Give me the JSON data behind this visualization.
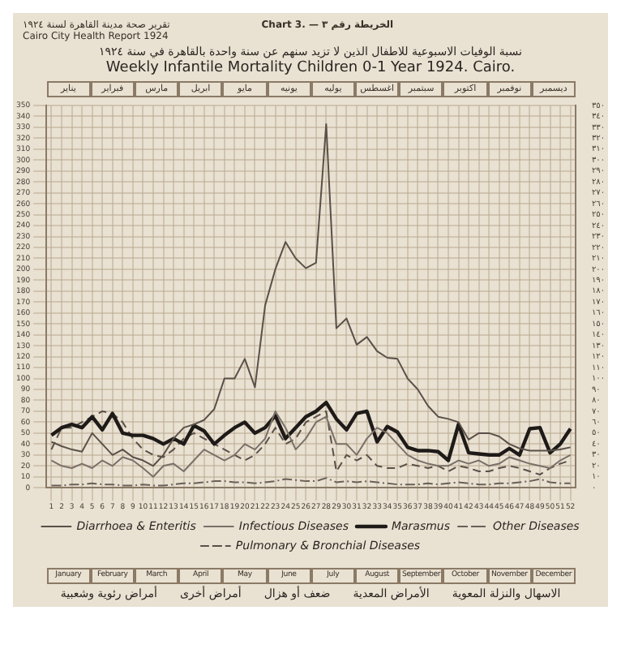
{
  "chart_data": {
    "type": "line",
    "title": "Weekly Infantile Mortality Children 0-1 Year 1924. Cairo.",
    "subtitle": "نسبة الوفيات الاسبوعية للاطفال الذين لا تزيد سنهم عن سنة واحدة بالقاهرة في سنة ١٩٢٤",
    "annotations": [
      "تقرير صحة مدينة القاهرة لسنة ١٩٢٤",
      "Cairo City Health Report 1924",
      "Chart 3. — الخريطة رقم ٣",
      "الاسهال والنزلة المعوية",
      "الأمراض المعدية",
      "ضعف أو هزال",
      "أمراض أخرى",
      "أمراض رئوية وشعبية",
      "January",
      "February",
      "March",
      "April",
      "May",
      "June",
      "July",
      "August",
      "September",
      "October",
      "November",
      "December",
      "يناير",
      "فبراير",
      "مارس",
      "ابريل",
      "مايو",
      "يونيه",
      "يوليه",
      "اغسطس",
      "سبتمبر",
      "اكتوبر",
      "نوفمبر",
      "ديسمبر"
    ],
    "x": [
      1,
      2,
      3,
      4,
      5,
      6,
      7,
      8,
      9,
      10,
      11,
      12,
      13,
      14,
      15,
      16,
      17,
      18,
      19,
      20,
      21,
      22,
      23,
      24,
      25,
      26,
      27,
      28,
      29,
      30,
      31,
      32,
      33,
      34,
      35,
      36,
      37,
      38,
      39,
      40,
      41,
      42,
      43,
      44,
      45,
      46,
      47,
      48,
      49,
      50,
      51,
      52
    ],
    "xlim": [
      0.5,
      52.5
    ],
    "xticks": [
      1,
      2,
      3,
      4,
      5,
      6,
      7,
      8,
      9,
      10,
      11,
      12,
      13,
      14,
      15,
      16,
      17,
      18,
      19,
      20,
      21,
      22,
      23,
      24,
      25,
      26,
      27,
      28,
      29,
      30,
      31,
      32,
      33,
      34,
      35,
      36,
      37,
      38,
      39,
      40,
      41,
      42,
      43,
      44,
      45,
      46,
      47,
      48,
      49,
      50,
      51,
      52
    ],
    "ylim": [
      0,
      350
    ],
    "yticks": [
      0,
      10,
      20,
      30,
      40,
      50,
      60,
      70,
      80,
      90,
      100,
      110,
      120,
      130,
      140,
      150,
      160,
      170,
      180,
      190,
      200,
      210,
      220,
      230,
      240,
      250,
      260,
      270,
      280,
      290,
      300,
      310,
      320,
      330,
      340,
      350
    ],
    "y2lim": [
      0,
      350
    ],
    "y2ticks": [
      {
        "value": 0,
        "label": "٠"
      },
      {
        "value": 10,
        "label": "١٠"
      },
      {
        "value": 20,
        "label": "٢٠"
      },
      {
        "value": 30,
        "label": "٣٠"
      },
      {
        "value": 40,
        "label": "٤٠"
      },
      {
        "value": 50,
        "label": "٥٠"
      },
      {
        "value": 60,
        "label": "٦٠"
      },
      {
        "value": 70,
        "label": "٧٠"
      },
      {
        "value": 80,
        "label": "٨٠"
      },
      {
        "value": 90,
        "label": "٩٠"
      },
      {
        "value": 100,
        "label": "١٠٠"
      },
      {
        "value": 110,
        "label": "١١٠"
      },
      {
        "value": 120,
        "label": "١٢٠"
      },
      {
        "value": 130,
        "label": "١٣٠"
      },
      {
        "value": 140,
        "label": "١٤٠"
      },
      {
        "value": 150,
        "label": "١٥٠"
      },
      {
        "value": 160,
        "label": "١٦٠"
      },
      {
        "value": 170,
        "label": "١٧٠"
      },
      {
        "value": 180,
        "label": "١٨٠"
      },
      {
        "value": 190,
        "label": "١٩٠"
      },
      {
        "value": 200,
        "label": "٢٠٠"
      },
      {
        "value": 210,
        "label": "٢١٠"
      },
      {
        "value": 220,
        "label": "٢٢٠"
      },
      {
        "value": 230,
        "label": "٢٣٠"
      },
      {
        "value": 240,
        "label": "٢٤٠"
      },
      {
        "value": 250,
        "label": "٢٥٠"
      },
      {
        "value": 260,
        "label": "٢٦٠"
      },
      {
        "value": 270,
        "label": "٢٧٠"
      },
      {
        "value": 280,
        "label": "٢٨٠"
      },
      {
        "value": 290,
        "label": "٢٩٠"
      },
      {
        "value": 300,
        "label": "٣٠٠"
      },
      {
        "value": 310,
        "label": "٣١٠"
      },
      {
        "value": 320,
        "label": "٣٢٠"
      },
      {
        "value": 330,
        "label": "٣٣٠"
      },
      {
        "value": 340,
        "label": "٣٤٠"
      },
      {
        "value": 350,
        "label": "٣٥٠"
      }
    ],
    "grid": true,
    "legend": "bottom",
    "marker": "none",
    "series": [
      {
        "name": "Diarrhoea & Enteritis",
        "color": "#5a5048",
        "line_style": "solid",
        "values": [
          42,
          38,
          35,
          33,
          50,
          40,
          30,
          35,
          28,
          25,
          20,
          30,
          45,
          55,
          58,
          62,
          72,
          100,
          100,
          118,
          92,
          167,
          200,
          225,
          210,
          201,
          206,
          333,
          146,
          155,
          131,
          138,
          125,
          119,
          118,
          100,
          90,
          75,
          65,
          63,
          60,
          44,
          50,
          50,
          47,
          40,
          36,
          34,
          34,
          34,
          35,
          37
        ]
      },
      {
        "name": "Infectious Diseases",
        "color": "#7a7068",
        "line_style": "solid",
        "values": [
          25,
          20,
          18,
          22,
          18,
          25,
          20,
          28,
          25,
          18,
          10,
          20,
          22,
          15,
          25,
          35,
          30,
          25,
          30,
          40,
          35,
          45,
          70,
          55,
          35,
          45,
          60,
          65,
          40,
          40,
          30,
          45,
          55,
          50,
          40,
          30,
          25,
          22,
          20,
          20,
          25,
          22,
          25,
          20,
          22,
          28,
          25,
          22,
          20,
          18,
          25,
          30
        ]
      },
      {
        "name": "Marasmus",
        "color": "#1e1a18",
        "line_style": "solid",
        "values": [
          48,
          55,
          58,
          55,
          65,
          53,
          68,
          50,
          48,
          48,
          45,
          40,
          45,
          40,
          57,
          52,
          40,
          48,
          55,
          60,
          50,
          55,
          66,
          45,
          55,
          65,
          70,
          78,
          63,
          53,
          68,
          70,
          42,
          56,
          51,
          37,
          34,
          34,
          33,
          25,
          58,
          32,
          31,
          30,
          30,
          36,
          30,
          54,
          55,
          32,
          40,
          54
        ]
      },
      {
        "name": "Other Diseases",
        "color": "#6a6058",
        "line_style": "dashdot",
        "values": [
          2,
          2,
          3,
          3,
          4,
          3,
          3,
          2,
          2,
          3,
          2,
          2,
          3,
          4,
          4,
          5,
          6,
          6,
          5,
          5,
          4,
          5,
          6,
          8,
          7,
          6,
          6,
          9,
          5,
          6,
          5,
          6,
          5,
          4,
          3,
          3,
          3,
          4,
          3,
          4,
          5,
          4,
          3,
          3,
          4,
          4,
          5,
          6,
          8,
          5,
          4,
          4
        ]
      },
      {
        "name": "Pulmonary & Bronchial Diseases",
        "color": "#5a5048",
        "line_style": "dashed",
        "values": [
          35,
          55,
          55,
          60,
          65,
          70,
          68,
          60,
          45,
          35,
          30,
          28,
          35,
          45,
          50,
          45,
          40,
          35,
          30,
          25,
          30,
          40,
          55,
          40,
          45,
          60,
          65,
          70,
          15,
          30,
          25,
          30,
          20,
          18,
          18,
          22,
          20,
          18,
          20,
          15,
          20,
          18,
          15,
          15,
          18,
          20,
          18,
          15,
          12,
          18,
          22,
          25
        ]
      }
    ]
  }
}
